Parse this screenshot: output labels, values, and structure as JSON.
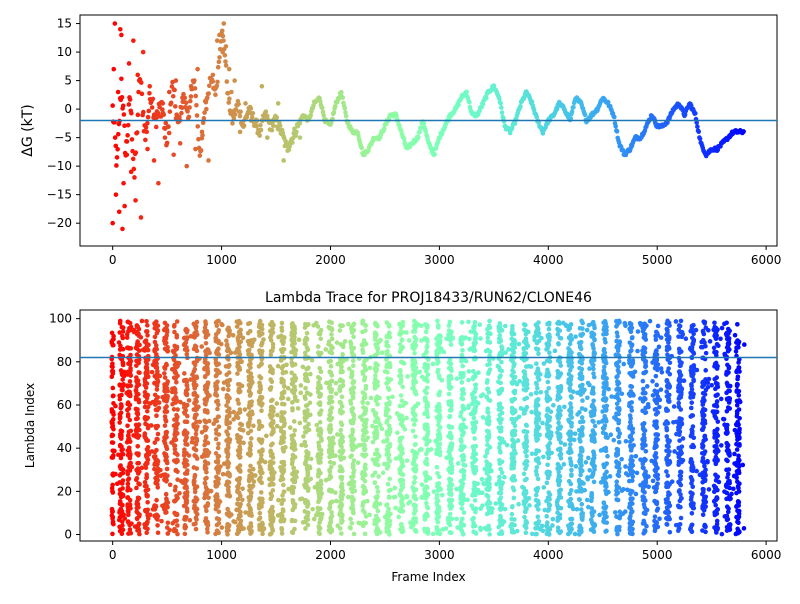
{
  "chart_data": [
    {
      "type": "scatter",
      "title": "",
      "xlabel": "",
      "ylabel": "ΔG (kT)",
      "xlim": [
        -300,
        6100
      ],
      "ylim": [
        -24,
        16.5
      ],
      "xticks": [
        0,
        1000,
        2000,
        3000,
        4000,
        5000,
        6000
      ],
      "yticks": [
        -20,
        -15,
        -10,
        -5,
        0,
        5,
        10,
        15
      ],
      "hline": -2,
      "hline_color": "#1f77b4",
      "colormap": "rainbow",
      "grid": false,
      "series": [
        {
          "frame_start": 0,
          "frame_end": 5800,
          "x": [
            0,
            40,
            80,
            120,
            160,
            200,
            250,
            300,
            350,
            400,
            450,
            500,
            550,
            600,
            650,
            700,
            750,
            800,
            850,
            900,
            950,
            1000,
            1030,
            1060,
            1100,
            1150,
            1200,
            1250,
            1300,
            1350,
            1400,
            1450,
            1500,
            1550,
            1600,
            1650,
            1700,
            1750,
            1800,
            1850,
            1900,
            1950,
            2000,
            2050,
            2100,
            2150,
            2200,
            2250,
            2300,
            2350,
            2400,
            2450,
            2500,
            2550,
            2600,
            2650,
            2700,
            2750,
            2800,
            2850,
            2900,
            2950,
            3000,
            3050,
            3100,
            3150,
            3200,
            3250,
            3300,
            3350,
            3400,
            3450,
            3500,
            3550,
            3600,
            3650,
            3700,
            3750,
            3800,
            3850,
            3900,
            3950,
            4000,
            4050,
            4100,
            4150,
            4200,
            4250,
            4300,
            4350,
            4400,
            4450,
            4500,
            4550,
            4600,
            4650,
            4700,
            4750,
            4800,
            4850,
            4900,
            4950,
            5000,
            5050,
            5100,
            5150,
            5200,
            5250,
            5300,
            5350,
            5400,
            5450,
            5500,
            5550,
            5600,
            5650,
            5700,
            5750,
            5800
          ],
          "values": [
            0,
            -10,
            5,
            -8,
            2,
            -12,
            6,
            -5,
            3,
            -2,
            1,
            -6,
            4,
            -3,
            2,
            -1,
            6,
            -9,
            1,
            5,
            3,
            14,
            10,
            2,
            -2,
            1,
            -3,
            0,
            -2,
            -4,
            -1,
            -3,
            -2,
            -4,
            -7,
            -5,
            -3,
            -1,
            -2,
            1,
            2,
            -2,
            -3,
            1,
            3,
            -2,
            -4,
            -4,
            -8,
            -7,
            -5,
            -5,
            -3,
            -1,
            -1,
            -4,
            -7,
            -6,
            -5,
            -2,
            -6,
            -8,
            -5,
            -3,
            -1,
            0,
            2,
            3,
            -1,
            -1,
            1,
            3,
            4,
            2,
            -3,
            -4,
            -2,
            1,
            3,
            1,
            -2,
            -4,
            -2,
            -1,
            1,
            0,
            -2,
            2,
            1,
            -2,
            -1,
            0,
            2,
            1,
            -1,
            -6,
            -8,
            -7,
            -5,
            -5,
            -3,
            -1,
            -3,
            -3,
            -2,
            0,
            1,
            -1,
            1,
            -1,
            -6,
            -8,
            -7,
            -7,
            -6,
            -5,
            -4,
            -4,
            -4
          ],
          "scatter_x": [
            0,
            10,
            20,
            30,
            50,
            60,
            70,
            80,
            90,
            100,
            110,
            130,
            150,
            170,
            190,
            210,
            230,
            260,
            280,
            320,
            340,
            380,
            420,
            460,
            480,
            520,
            560,
            580,
            620,
            640,
            680,
            720,
            760,
            780,
            820,
            860,
            880,
            920,
            960,
            980,
            1010,
            1020,
            1040,
            1070,
            1090,
            1120,
            1170,
            1220,
            1270,
            1320,
            1370,
            1420,
            1470,
            1520,
            1570,
            1620,
            1670,
            1720
          ],
          "scatter_values": [
            -20,
            7,
            15,
            -15,
            3,
            -18,
            14,
            13,
            -21,
            -13,
            -17,
            -8,
            8,
            -11,
            12,
            -16,
            6,
            -19,
            10,
            -7,
            4,
            -9,
            -13,
            1,
            -5,
            3,
            -8,
            5,
            -6,
            2,
            -10,
            4,
            -7,
            7,
            -4,
            0,
            -9,
            6,
            12,
            13,
            10,
            15,
            11,
            7,
            3,
            5,
            -4,
            1,
            -2,
            -3,
            4,
            -5,
            -2,
            1,
            -9,
            -6,
            -4,
            -5
          ]
        }
      ]
    },
    {
      "type": "scatter",
      "title": "Lambda Trace for PROJ18433/RUN62/CLONE46",
      "xlabel": "Frame Index",
      "ylabel": "Lambda Index",
      "xlim": [
        -300,
        6100
      ],
      "ylim": [
        -3,
        104
      ],
      "xticks": [
        0,
        1000,
        2000,
        3000,
        4000,
        5000,
        6000
      ],
      "yticks": [
        0,
        20,
        40,
        60,
        80,
        100
      ],
      "hline": 82,
      "hline_color": "#1f77b4",
      "colormap": "rainbow",
      "grid": false,
      "series": [
        {
          "x_range": [
            0,
            5800
          ],
          "lambda_range": [
            0,
            99
          ],
          "band_centers": [
            0,
            80,
            150,
            230,
            310,
            400,
            490,
            580,
            670,
            760,
            860,
            960,
            1060,
            1160,
            1260,
            1360,
            1460,
            1560,
            1660,
            1780,
            1900,
            2000,
            2100,
            2200,
            2310,
            2420,
            2530,
            2650,
            2770,
            2880,
            2990,
            3100,
            3210,
            3320,
            3450,
            3560,
            3680,
            3790,
            3900,
            4000,
            4100,
            4200,
            4300,
            4410,
            4520,
            4640,
            4760,
            4880,
            4990,
            5100,
            5210,
            5320,
            5430,
            5540,
            5650,
            5740
          ],
          "band_max": [
            96,
            99,
            99,
            99,
            99,
            99,
            99,
            99,
            99,
            99,
            99,
            99,
            99,
            99,
            99,
            99,
            99,
            99,
            99,
            99,
            99,
            99,
            99,
            99,
            99,
            99,
            99,
            99,
            99,
            99,
            99,
            99,
            99,
            99,
            99,
            99,
            99,
            99,
            99,
            99,
            99,
            99,
            99,
            99,
            99,
            99,
            99,
            99,
            99,
            99,
            99,
            99,
            99,
            99,
            99,
            93
          ]
        }
      ]
    }
  ]
}
